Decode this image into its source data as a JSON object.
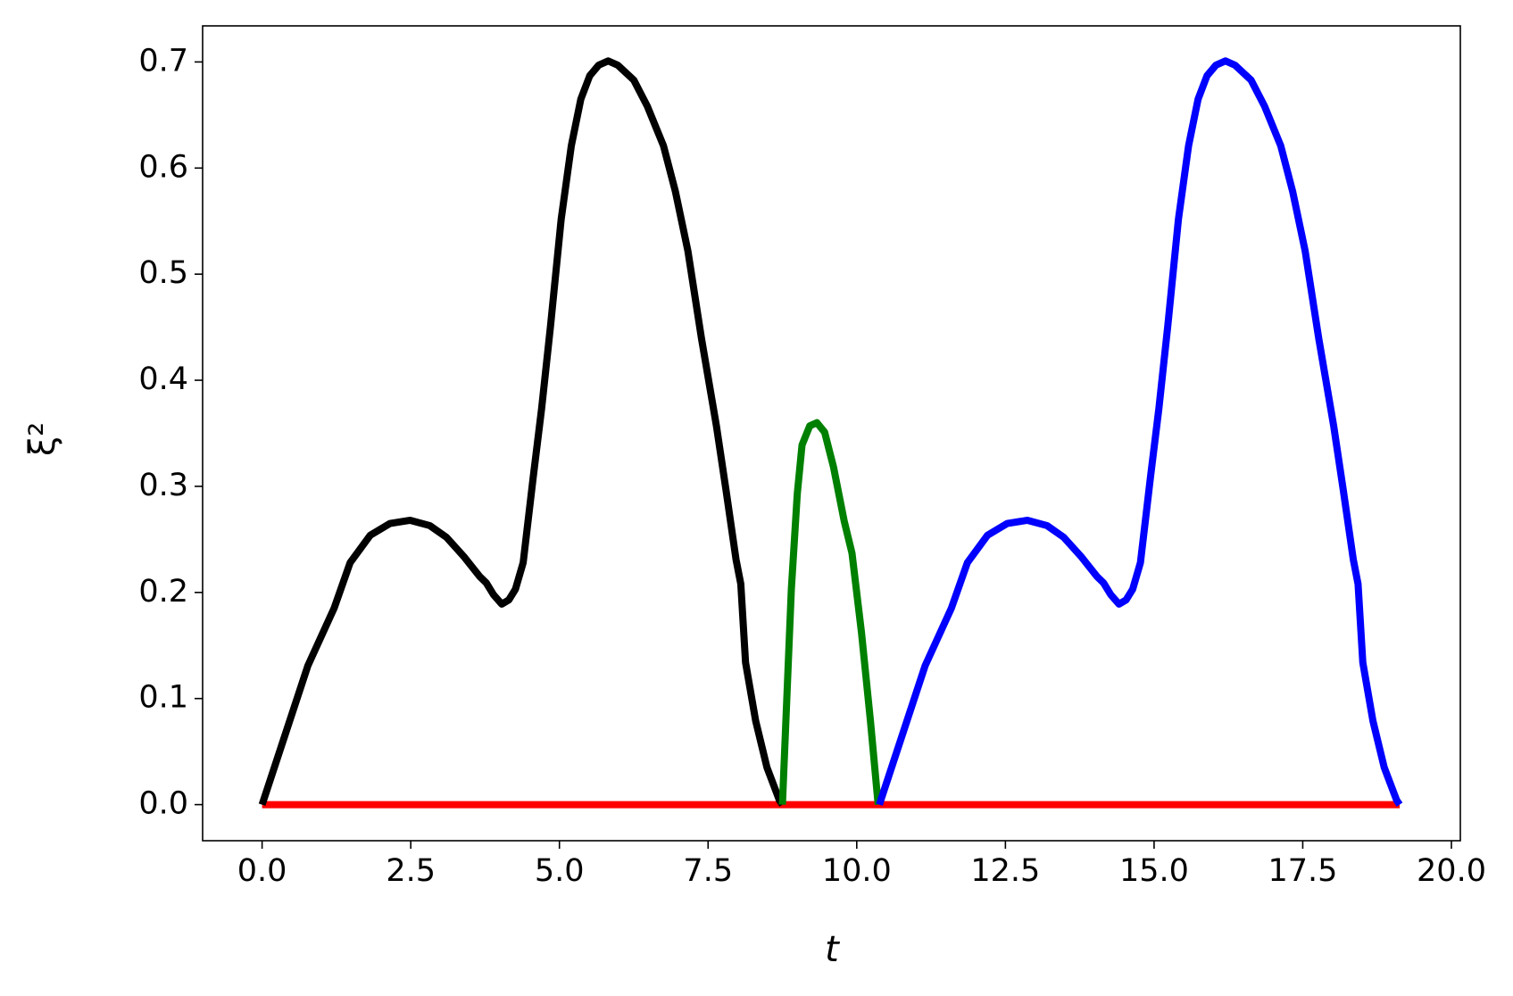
{
  "chart_data": {
    "type": "line",
    "x_label": "t",
    "y_label": "ξ²",
    "xlim": [
      -1.0,
      20.15
    ],
    "ylim": [
      -0.034,
      0.734
    ],
    "xticks": [
      {
        "value": 0,
        "label": "0.0"
      },
      2.5,
      {
        "value": 5,
        "label": "5.0"
      },
      7.5,
      {
        "value": 10,
        "label": "10.0"
      },
      12.5,
      {
        "value": 15,
        "label": "15.0"
      },
      17.5,
      {
        "value": 20,
        "label": "20.0"
      }
    ],
    "yticks": [
      {
        "value": 0,
        "label": "0.0"
      },
      0.1,
      0.2,
      0.3,
      0.4,
      0.5,
      0.6,
      0.7
    ],
    "grid": false,
    "series": [
      {
        "color": "#ff0000",
        "x": [
          0,
          19.13
        ],
        "values": [
          0,
          0
        ]
      },
      {
        "color": "#000000",
        "x": [
          0,
          0.77,
          1.21,
          1.48,
          1.82,
          2.15,
          2.49,
          2.82,
          3.1,
          3.39,
          3.66,
          3.77,
          3.89,
          4.03,
          4.15,
          4.26,
          4.39,
          4.56,
          4.7,
          4.85,
          5.03,
          5.2,
          5.36,
          5.51,
          5.66,
          5.82,
          5.98,
          6.25,
          6.48,
          6.75,
          6.95,
          7.16,
          7.39,
          7.64,
          7.8,
          7.97,
          8.05,
          8.13,
          8.3,
          8.49,
          8.7,
          8.75
        ],
        "values": [
          0,
          0.131,
          0.185,
          0.228,
          0.254,
          0.265,
          0.268,
          0.263,
          0.252,
          0.234,
          0.215,
          0.209,
          0.198,
          0.189,
          0.193,
          0.203,
          0.228,
          0.309,
          0.373,
          0.451,
          0.552,
          0.621,
          0.665,
          0.687,
          0.697,
          0.701,
          0.697,
          0.683,
          0.658,
          0.621,
          0.578,
          0.522,
          0.439,
          0.357,
          0.297,
          0.231,
          0.208,
          0.134,
          0.079,
          0.035,
          0.004,
          0
        ]
      },
      {
        "color": "#008000",
        "x": [
          8.75,
          8.9,
          9.0,
          9.08,
          9.21,
          9.33,
          9.46,
          9.61,
          9.79,
          9.92,
          10.08,
          10.23,
          10.36
        ],
        "values": [
          0,
          0.203,
          0.293,
          0.339,
          0.357,
          0.36,
          0.351,
          0.318,
          0.267,
          0.237,
          0.162,
          0.079,
          0
        ]
      },
      {
        "color": "#0000ff",
        "x": [
          10.38,
          11.15,
          11.59,
          11.86,
          12.2,
          12.53,
          12.87,
          13.2,
          13.48,
          13.77,
          14.04,
          14.15,
          14.27,
          14.41,
          14.53,
          14.64,
          14.77,
          14.94,
          15.08,
          15.23,
          15.41,
          15.58,
          15.74,
          15.89,
          16.04,
          16.2,
          16.36,
          16.63,
          16.86,
          17.13,
          17.33,
          17.54,
          17.77,
          18.02,
          18.18,
          18.35,
          18.43,
          18.51,
          18.68,
          18.87,
          19.08,
          19.13
        ],
        "values": [
          0,
          0.131,
          0.185,
          0.228,
          0.254,
          0.265,
          0.268,
          0.263,
          0.252,
          0.234,
          0.215,
          0.209,
          0.198,
          0.189,
          0.193,
          0.203,
          0.228,
          0.309,
          0.373,
          0.451,
          0.552,
          0.621,
          0.665,
          0.687,
          0.697,
          0.701,
          0.697,
          0.683,
          0.658,
          0.621,
          0.578,
          0.522,
          0.439,
          0.357,
          0.297,
          0.231,
          0.208,
          0.134,
          0.079,
          0.035,
          0.004,
          0
        ]
      }
    ]
  }
}
